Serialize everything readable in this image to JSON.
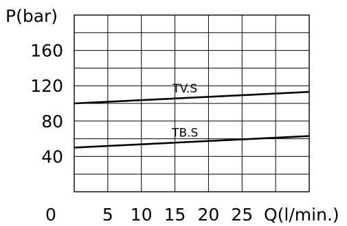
{
  "chart_data": {
    "type": "line",
    "title": "",
    "ylabel": "P(bar)",
    "xlabel": "Q(l/min.)",
    "x_ticks": [
      0,
      5,
      10,
      15,
      20,
      25
    ],
    "y_ticks": [
      40,
      80,
      120,
      160
    ],
    "xlim": [
      0,
      35
    ],
    "ylim": [
      0,
      200
    ],
    "grid": true,
    "series": [
      {
        "name": "TV.S",
        "x": [
          0,
          35
        ],
        "values": [
          100,
          113
        ]
      },
      {
        "name": "TB.S",
        "x": [
          0,
          35
        ],
        "values": [
          50,
          63
        ]
      }
    ]
  }
}
